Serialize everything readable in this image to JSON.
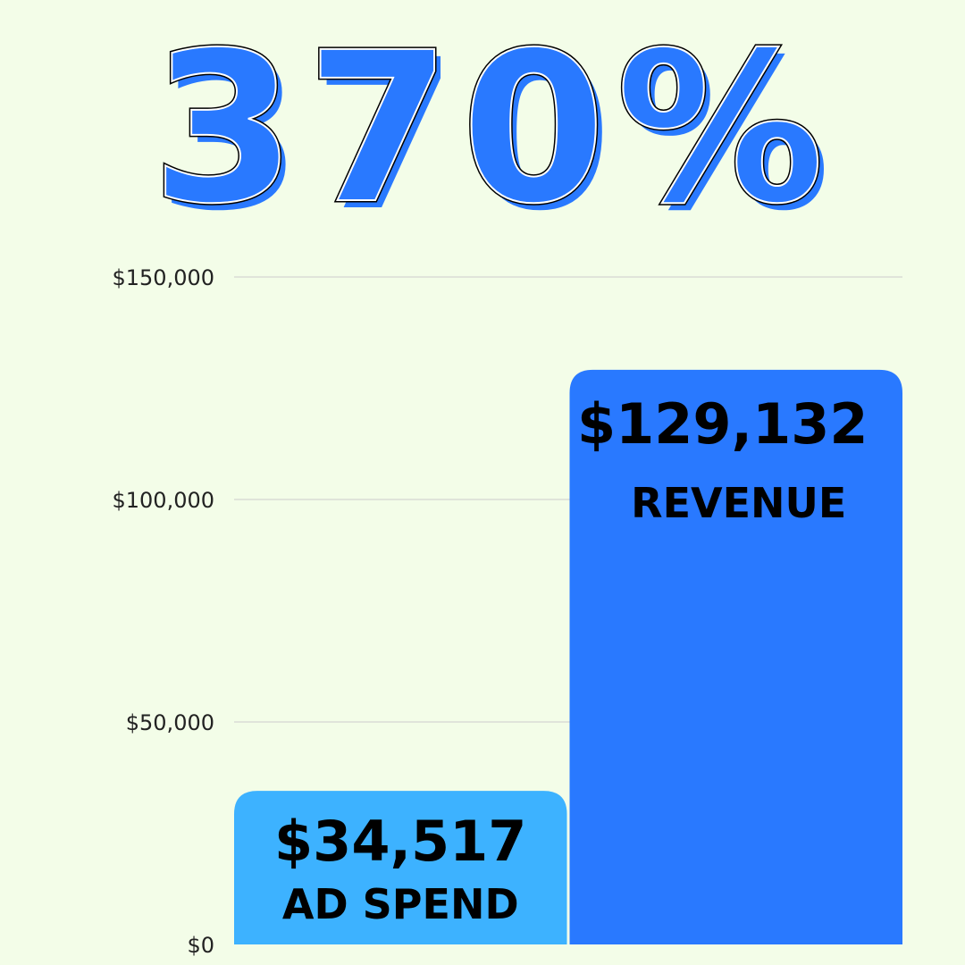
{
  "headline": "370%",
  "colors": {
    "background": "#F3FDE8",
    "headline": "#2979FF",
    "ad_spend_bar": "#3DB2FF",
    "revenue_bar": "#2979FF",
    "gridline": "#CCCCCC"
  },
  "chart_data": {
    "type": "bar",
    "categories": [
      "AD SPEND",
      "REVENUE"
    ],
    "values": [
      34517,
      129132
    ],
    "value_labels": [
      "$34,517",
      "$129,132"
    ],
    "ylim": [
      0,
      150000
    ],
    "yticks": [
      0,
      50000,
      100000,
      150000
    ],
    "ytick_labels": [
      "$0",
      "$50,000",
      "$100,000",
      "$150,000"
    ],
    "grid": true,
    "legend": "none",
    "xlabel": "",
    "ylabel": ""
  }
}
